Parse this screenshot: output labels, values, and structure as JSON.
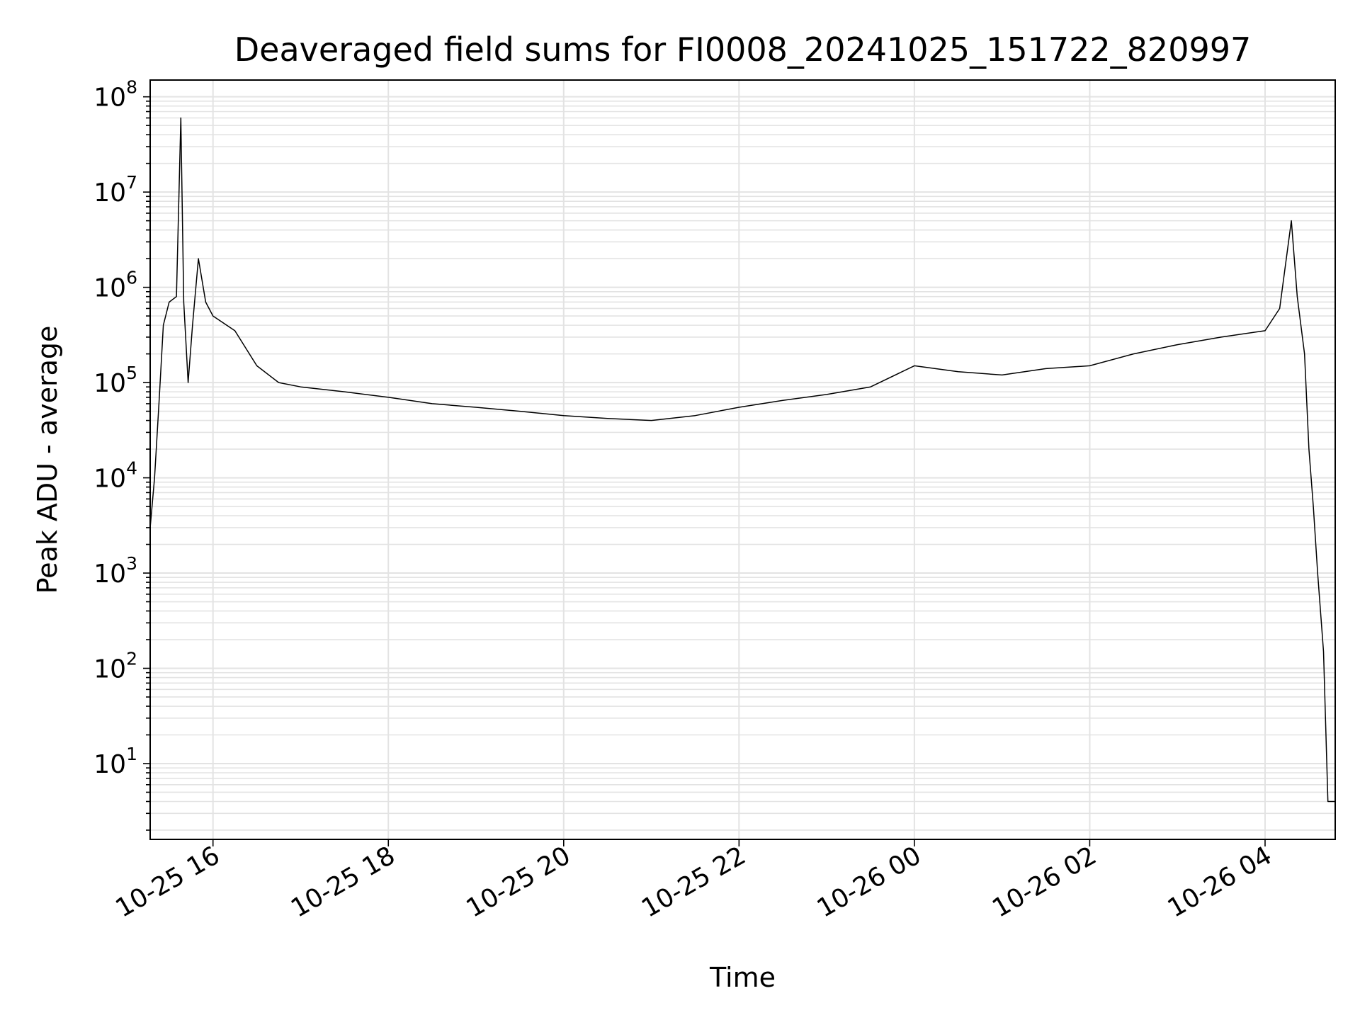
{
  "chart_data": {
    "type": "line",
    "title": "Deaveraged field sums for FI0008_20241025_151722_820997",
    "xlabel": "Time",
    "ylabel": "Peak ADU - average",
    "yscale": "log",
    "ylim": [
      1.6,
      150000000
    ],
    "xlim": [
      "2024-10-25 15:17",
      "2024-10-26 04:48"
    ],
    "grid": true,
    "line_color": "#000000",
    "x_ticks": [
      "10-25 16",
      "10-25 18",
      "10-25 20",
      "10-25 22",
      "10-26 00",
      "10-26 02",
      "10-26 04"
    ],
    "y_ticks": [
      {
        "base": "10",
        "exp": "1",
        "value": 10
      },
      {
        "base": "10",
        "exp": "2",
        "value": 100
      },
      {
        "base": "10",
        "exp": "3",
        "value": 1000
      },
      {
        "base": "10",
        "exp": "4",
        "value": 10000
      },
      {
        "base": "10",
        "exp": "5",
        "value": 100000
      },
      {
        "base": "10",
        "exp": "6",
        "value": 1000000
      },
      {
        "base": "10",
        "exp": "7",
        "value": 10000000
      },
      {
        "base": "10",
        "exp": "8",
        "value": 100000000
      }
    ],
    "series": [
      {
        "x": [
          "2024-10-25 15:17",
          "2024-10-25 15:20",
          "2024-10-25 15:23",
          "2024-10-25 15:26",
          "2024-10-25 15:30",
          "2024-10-25 15:35",
          "2024-10-25 15:38",
          "2024-10-25 15:40",
          "2024-10-25 15:43",
          "2024-10-25 15:46",
          "2024-10-25 15:50",
          "2024-10-25 15:55",
          "2024-10-25 16:00",
          "2024-10-25 16:15",
          "2024-10-25 16:30",
          "2024-10-25 16:45",
          "2024-10-25 17:00",
          "2024-10-25 17:30",
          "2024-10-25 18:00",
          "2024-10-25 18:30",
          "2024-10-25 19:00",
          "2024-10-25 19:30",
          "2024-10-25 20:00",
          "2024-10-25 20:30",
          "2024-10-25 21:00",
          "2024-10-25 21:30",
          "2024-10-25 22:00",
          "2024-10-25 22:30",
          "2024-10-25 23:00",
          "2024-10-25 23:30",
          "2024-10-26 00:00",
          "2024-10-26 00:30",
          "2024-10-26 01:00",
          "2024-10-26 01:30",
          "2024-10-26 02:00",
          "2024-10-26 02:30",
          "2024-10-26 03:00",
          "2024-10-26 03:30",
          "2024-10-26 04:00",
          "2024-10-26 04:10",
          "2024-10-26 04:18",
          "2024-10-26 04:22",
          "2024-10-26 04:27",
          "2024-10-26 04:30",
          "2024-10-26 04:33",
          "2024-10-26 04:36",
          "2024-10-26 04:40",
          "2024-10-26 04:43",
          "2024-10-26 04:45",
          "2024-10-26 04:48"
        ],
        "y": [
          3000,
          10000,
          60000,
          400000,
          700000,
          800000,
          60000000,
          700000,
          100000,
          400000,
          2000000,
          700000,
          500000,
          350000,
          150000,
          100000,
          90000,
          80000,
          70000,
          60000,
          55000,
          50000,
          45000,
          42000,
          40000,
          45000,
          55000,
          65000,
          75000,
          90000,
          150000,
          130000,
          120000,
          140000,
          150000,
          200000,
          250000,
          300000,
          350000,
          600000,
          5000000,
          800000,
          200000,
          20000,
          5000,
          1000,
          150,
          4,
          4,
          4
        ]
      }
    ]
  }
}
